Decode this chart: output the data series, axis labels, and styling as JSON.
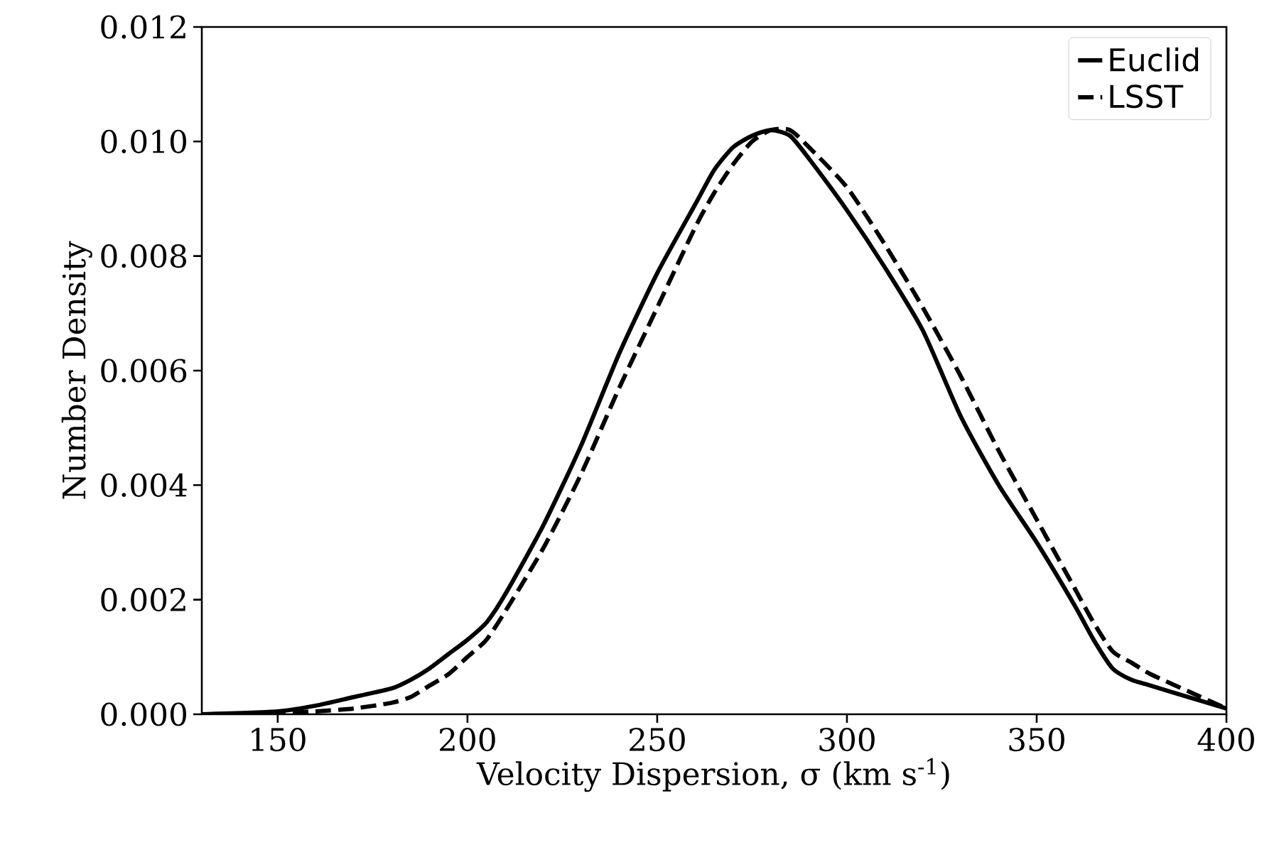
{
  "chart_data": {
    "type": "line",
    "xlabel": "Velocity Dispersion, σ (km s$^{-1}$)",
    "ylabel": "Number Density",
    "xlim": [
      130,
      400
    ],
    "xticks": [
      150,
      200,
      250,
      300,
      350,
      400
    ],
    "ylim": [
      0,
      0.012
    ],
    "yticks": [
      {
        "value": 0,
        "label": "0.000"
      },
      {
        "value": 0.002,
        "label": "0.002"
      },
      {
        "value": 0.004,
        "label": "0.004"
      },
      {
        "value": 0.006,
        "label": "0.006"
      },
      {
        "value": 0.008,
        "label": "0.008"
      },
      {
        "value": 0.01,
        "label": "0.010"
      },
      {
        "value": 0.012,
        "label": "0.012"
      }
    ],
    "x": [
      130,
      150,
      160,
      170,
      180,
      185,
      190,
      195,
      200,
      205,
      210,
      220,
      230,
      240,
      250,
      260,
      265,
      270,
      275,
      280,
      285,
      290,
      300,
      310,
      320,
      330,
      340,
      350,
      360,
      365,
      370,
      375,
      380,
      390,
      400
    ],
    "legend": "top right",
    "grid": false,
    "marker": "none",
    "series": [
      {
        "name": "Euclid",
        "color": "#000000",
        "line_style": "solid",
        "values": [
          0,
          5e-05,
          0.00015,
          0.0003,
          0.00045,
          0.0006,
          0.0008,
          0.00105,
          0.0013,
          0.0016,
          0.0021,
          0.0033,
          0.0047,
          0.0063,
          0.0077,
          0.0089,
          0.0095,
          0.0099,
          0.0101,
          0.0102,
          0.0101,
          0.0097,
          0.0088,
          0.0078,
          0.0067,
          0.0052,
          0.004,
          0.003,
          0.0019,
          0.0013,
          0.0008,
          0.0006,
          0.0005,
          0.0003,
          0.0001
        ]
      },
      {
        "name": "LSST",
        "color": "#000000",
        "line_style": "dashed",
        "values": [
          0,
          2e-05,
          5e-05,
          0.0001,
          0.0002,
          0.0003,
          0.0005,
          0.0007,
          0.001,
          0.0013,
          0.0018,
          0.0029,
          0.0042,
          0.0057,
          0.0071,
          0.0085,
          0.0091,
          0.0096,
          0.01,
          0.0102,
          0.0102,
          0.0099,
          0.0092,
          0.0082,
          0.0071,
          0.0059,
          0.0046,
          0.0034,
          0.0022,
          0.0016,
          0.0011,
          0.0009,
          0.0007,
          0.0004,
          0.0001
        ]
      }
    ]
  }
}
